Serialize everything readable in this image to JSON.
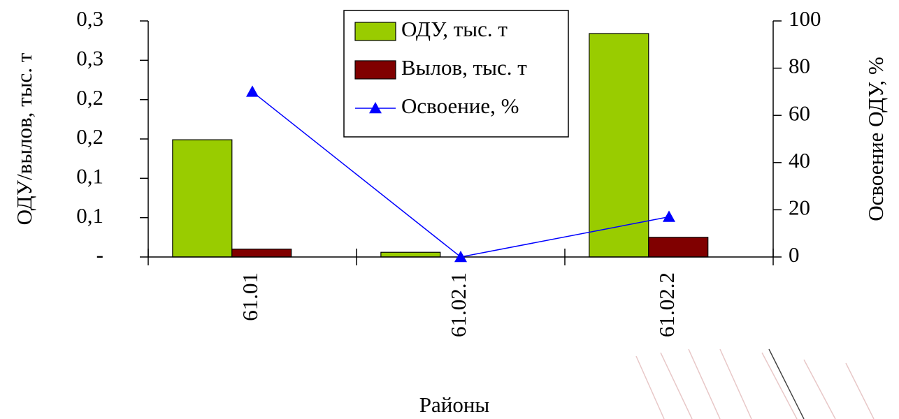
{
  "chart_data": {
    "type": "bar",
    "categories": [
      "61.01",
      "61.02.1",
      "61.02.2"
    ],
    "x_label": "Районы",
    "y_label": "ОДУ/вылов, тыс. т",
    "y2_label": "Освоение ОДУ, %",
    "series": [
      {
        "name": "ОДУ, тыс. т",
        "color": "#99cc00",
        "values": [
          0.149,
          0.006,
          0.284
        ]
      },
      {
        "name": "Вылов, тыс. т",
        "color": "#800000",
        "values": [
          0.01,
          0,
          0.025
        ]
      },
      {
        "name": "Освоение, %",
        "color": "#0000ff",
        "type": "line",
        "axis": "y2",
        "values": [
          70,
          0,
          17
        ]
      }
    ],
    "ylim": [
      0,
      0.3
    ],
    "yticks": [
      {
        "value": 0,
        "label": "-"
      },
      {
        "value": 0.05,
        "label": "0,1"
      },
      {
        "value": 0.1,
        "label": "0,1"
      },
      {
        "value": 0.15,
        "label": "0,2"
      },
      {
        "value": 0.2,
        "label": "0,2"
      },
      {
        "value": 0.25,
        "label": "0,3"
      },
      {
        "value": 0.3,
        "label": "0,3"
      }
    ],
    "y2lim": [
      0,
      100
    ],
    "y2ticks": [
      0,
      20,
      40,
      60,
      80,
      100
    ],
    "legend": "top"
  }
}
